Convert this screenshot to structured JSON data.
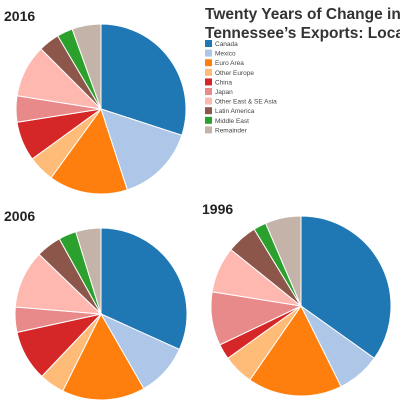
{
  "chart_data": {
    "type": "pie",
    "title": "Twenty Years of Change in Tennessee’s Exports: Location",
    "legend": [
      {
        "name": "Canada",
        "color": "#1f77b4"
      },
      {
        "name": "Mexico",
        "color": "#aec7e8"
      },
      {
        "name": "Euro Area",
        "color": "#ff7f0e"
      },
      {
        "name": "Other Europe",
        "color": "#ffbb78"
      },
      {
        "name": "China",
        "color": "#d62728"
      },
      {
        "name": "Japan",
        "color": "#e88a8a"
      },
      {
        "name": "Other East & SE Asia",
        "color": "#ffb8b0"
      },
      {
        "name": "Latin America",
        "color": "#8c564b"
      },
      {
        "name": "Middle East",
        "color": "#2ca02c"
      },
      {
        "name": "Remainder",
        "color": "#c4b3a9"
      }
    ],
    "legend_position": "top-right",
    "charts": [
      {
        "label": "2016",
        "values": [
          30,
          15,
          15,
          5,
          7.5,
          5,
          10,
          4,
          3,
          5.5
        ]
      },
      {
        "label": "2006",
        "values": [
          33.5,
          10.5,
          16.5,
          5,
          10,
          5,
          11.5,
          5,
          3.5,
          5
        ]
      },
      {
        "label": "1996",
        "values": [
          38,
          8.5,
          18.5,
          6,
          3,
          10.5,
          9,
          6,
          2.5,
          7
        ]
      }
    ]
  }
}
